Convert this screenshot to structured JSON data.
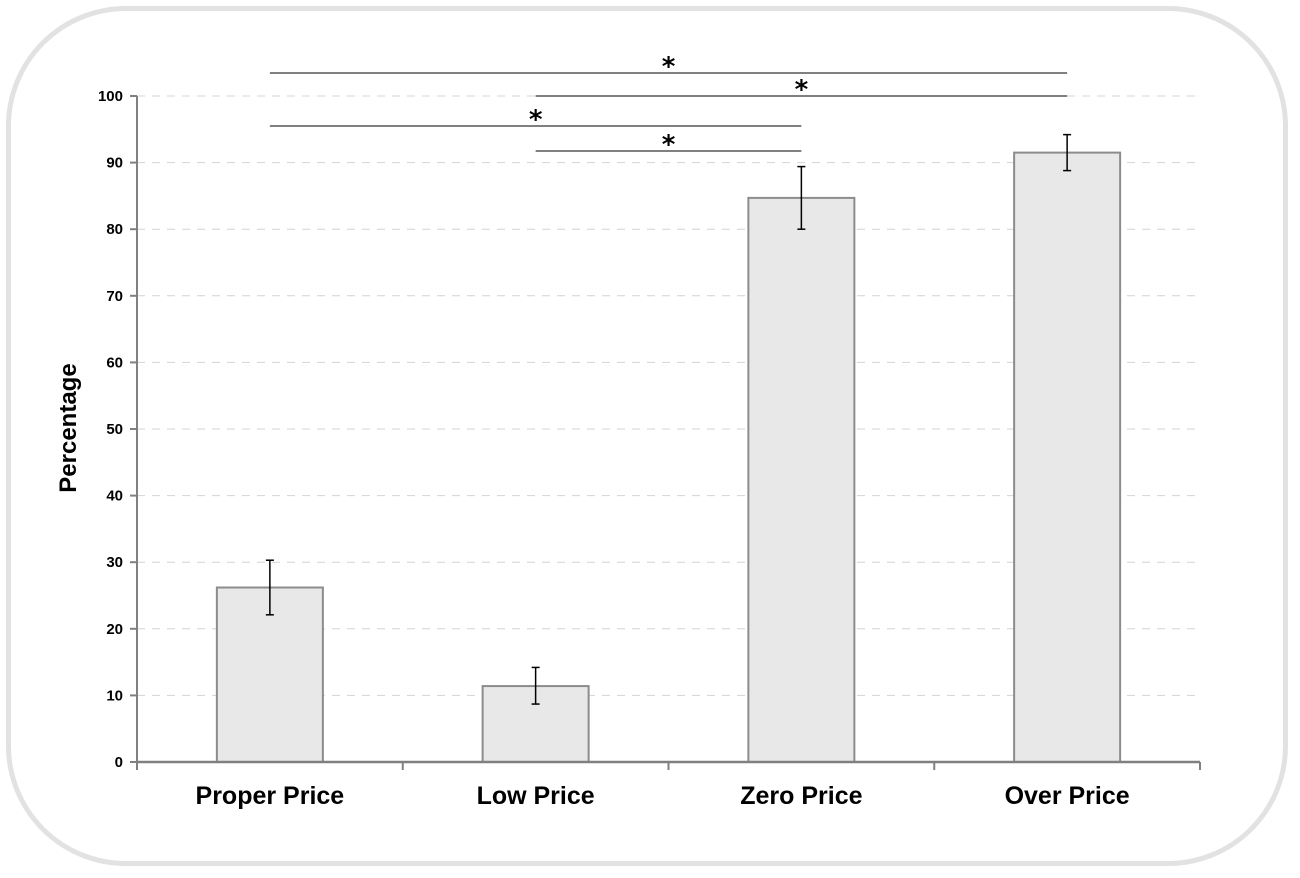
{
  "chart_data": {
    "type": "bar",
    "title": "",
    "xlabel": "",
    "ylabel": "Percentage",
    "ylim": [
      0,
      100
    ],
    "yticks": [
      0,
      10,
      20,
      30,
      40,
      50,
      60,
      70,
      80,
      90,
      100
    ],
    "grid": "horizontal dashed",
    "categories": [
      "Proper Price",
      "Low Price",
      "Zero Price",
      "Over Price"
    ],
    "values": [
      26.2,
      11.4,
      84.7,
      91.5
    ],
    "error_bars": [
      {
        "low": 22.1,
        "high": 30.3
      },
      {
        "low": 8.7,
        "high": 14.2
      },
      {
        "low": 80.0,
        "high": 89.4
      },
      {
        "low": 88.8,
        "high": 94.2
      }
    ],
    "significance": [
      {
        "from": "Proper Price",
        "to": "Over Price",
        "label": "*"
      },
      {
        "from": "Low Price",
        "to": "Over Price",
        "label": "*"
      },
      {
        "from": "Proper Price",
        "to": "Zero Price",
        "label": "*"
      },
      {
        "from": "Low Price",
        "to": "Zero Price",
        "label": "*"
      }
    ],
    "colors": {
      "bar_fill": "#e8e8e8",
      "bar_stroke": "#8c8c8c",
      "grid": "#d4d4d4",
      "axis": "#808080",
      "sig_line": "#808080"
    }
  }
}
